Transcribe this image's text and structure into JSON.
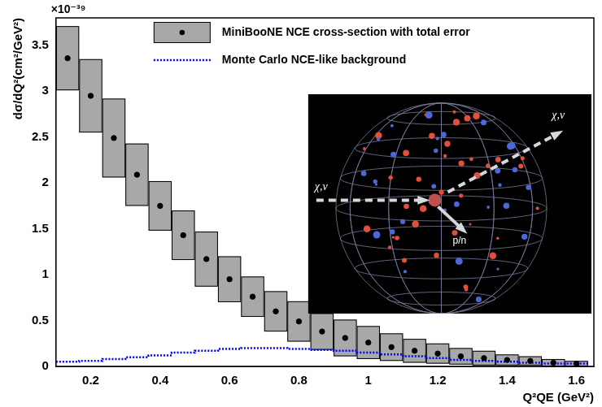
{
  "chart_data": {
    "type": "histogram",
    "y_label": "dσ/dQ²(cm²/GeV²)",
    "x_label": "Q²QE (GeV²)",
    "y_multiplier": "×10⁻³⁹",
    "annotations": [
      "χ,ν",
      "χ,ν",
      "p/n"
    ],
    "bins": [
      0.1,
      0.1667,
      0.2333,
      0.3,
      0.3667,
      0.4333,
      0.5,
      0.5667,
      0.6333,
      0.7,
      0.7667,
      0.8333,
      0.9,
      0.9667,
      1.0333,
      1.1,
      1.1667,
      1.2333,
      1.3,
      1.3667,
      1.4333,
      1.5,
      1.5667,
      1.6333
    ],
    "series": [
      {
        "name": "MiniBooNE NCE cross-section with total error",
        "type": "scatter",
        "color": "#a8a8a8",
        "marker": "circle",
        "values": [
          3.36,
          2.95,
          2.49,
          2.09,
          1.75,
          1.43,
          1.17,
          0.95,
          0.76,
          0.6,
          0.49,
          0.38,
          0.31,
          0.26,
          0.21,
          0.17,
          0.14,
          0.11,
          0.09,
          0.07,
          0.06,
          0.04,
          0.03
        ],
        "errors": [
          0.35,
          0.4,
          0.43,
          0.34,
          0.27,
          0.27,
          0.3,
          0.25,
          0.22,
          0.22,
          0.22,
          0.2,
          0.2,
          0.18,
          0.15,
          0.13,
          0.11,
          0.09,
          0.08,
          0.06,
          0.05,
          0.04,
          0.03
        ]
      },
      {
        "name": "Monte Carlo NCE-like background",
        "type": "step",
        "color": "#0000ff",
        "line_style": "dotted",
        "values": [
          0.05,
          0.05,
          0.06,
          0.08,
          0.1,
          0.12,
          0.15,
          0.17,
          0.19,
          0.2,
          0.2,
          0.19,
          0.18,
          0.17,
          0.15,
          0.13,
          0.11,
          0.09,
          0.07,
          0.06,
          0.05,
          0.04,
          0.03
        ]
      }
    ],
    "xlim": [
      0.1,
      1.65
    ],
    "xticks": [
      0.2,
      0.4,
      0.6,
      0.8,
      1,
      1.2,
      1.4,
      1.6
    ],
    "ylim": [
      0,
      3.8
    ],
    "yticks": [
      0,
      0.5,
      1,
      1.5,
      2,
      2.5,
      3,
      3.5
    ],
    "grid": false,
    "legend": "top right"
  }
}
